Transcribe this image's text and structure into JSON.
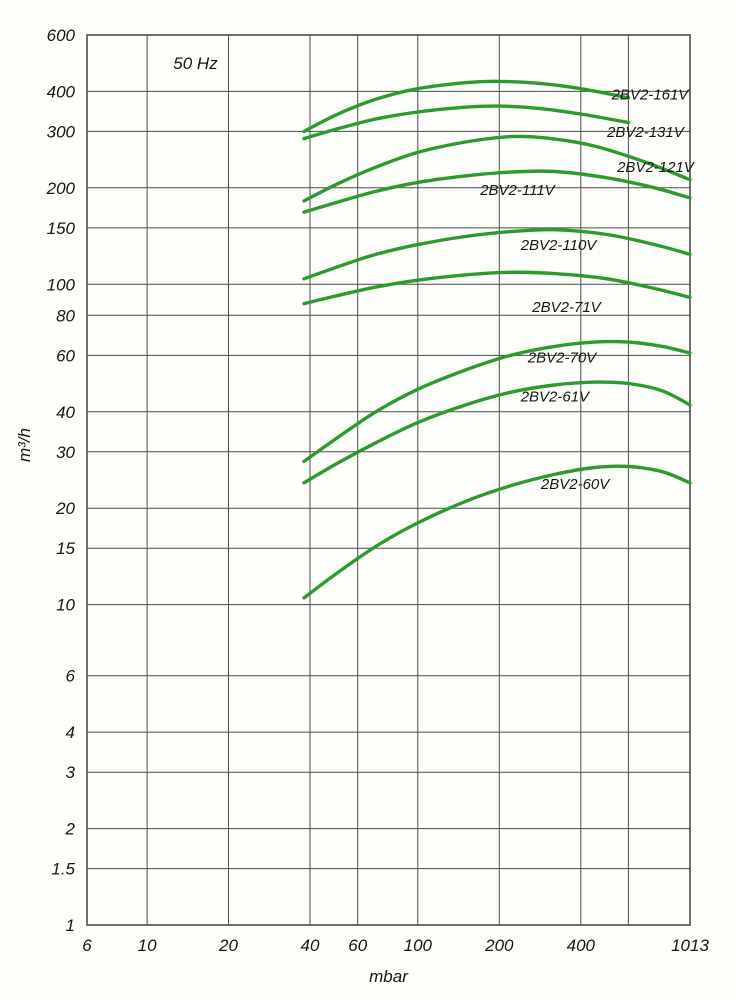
{
  "page": {
    "background": "#fdfdfa"
  },
  "chart_data": {
    "type": "line",
    "title": "50 Hz",
    "title_pos": {
      "x": 12.5,
      "y": 470
    },
    "xlabel": "mbar",
    "ylabel": "m³/h",
    "x_scale": "log",
    "y_scale": "log",
    "xlim": [
      6,
      1013
    ],
    "ylim": [
      1,
      600
    ],
    "grid": true,
    "legend_position": "inline-labels",
    "colors": {
      "curve": "#2c9a2f",
      "grid": "#4c4c4c",
      "text": "#161616"
    },
    "x_ticks": [
      {
        "value": 6,
        "label": "6"
      },
      {
        "value": 10,
        "label": "10"
      },
      {
        "value": 20,
        "label": "20"
      },
      {
        "value": 40,
        "label": "40"
      },
      {
        "value": 60,
        "label": "60"
      },
      {
        "value": 100,
        "label": "100"
      },
      {
        "value": 200,
        "label": "200"
      },
      {
        "value": 400,
        "label": "400"
      },
      {
        "value": 600,
        "label": ""
      },
      {
        "value": 1013,
        "label": "1013"
      }
    ],
    "y_ticks": [
      {
        "value": 600,
        "label": "600"
      },
      {
        "value": 400,
        "label": "400"
      },
      {
        "value": 300,
        "label": "300"
      },
      {
        "value": 200,
        "label": "200"
      },
      {
        "value": 150,
        "label": "150"
      },
      {
        "value": 100,
        "label": "100"
      },
      {
        "value": 80,
        "label": "80"
      },
      {
        "value": 60,
        "label": "60"
      },
      {
        "value": 40,
        "label": "40"
      },
      {
        "value": 30,
        "label": "30"
      },
      {
        "value": 20,
        "label": "20"
      },
      {
        "value": 15,
        "label": "15"
      },
      {
        "value": 10,
        "label": "10"
      },
      {
        "value": 6,
        "label": "6"
      },
      {
        "value": 4,
        "label": "4"
      },
      {
        "value": 3,
        "label": "3"
      },
      {
        "value": 2,
        "label": "2"
      },
      {
        "value": 1.5,
        "label": "1.5"
      },
      {
        "value": 1,
        "label": "1"
      }
    ],
    "series": [
      {
        "name": "2BV2-161V",
        "label": "2BV2-161V",
        "label_x": 520,
        "label_y": 378,
        "points": [
          [
            38,
            300
          ],
          [
            50,
            338
          ],
          [
            70,
            378
          ],
          [
            100,
            408
          ],
          [
            150,
            426
          ],
          [
            200,
            430
          ],
          [
            280,
            424
          ],
          [
            400,
            408
          ],
          [
            600,
            382
          ]
        ]
      },
      {
        "name": "2BV2-131V",
        "label": "2BV2-131V",
        "label_x": 500,
        "label_y": 288,
        "points": [
          [
            38,
            285
          ],
          [
            50,
            305
          ],
          [
            70,
            328
          ],
          [
            100,
            345
          ],
          [
            150,
            357
          ],
          [
            200,
            360
          ],
          [
            280,
            354
          ],
          [
            400,
            340
          ],
          [
            600,
            320
          ]
        ]
      },
      {
        "name": "2BV2-121V",
        "label": "2BV2-121V",
        "label_x": 545,
        "label_y": 224,
        "points": [
          [
            38,
            182
          ],
          [
            50,
            205
          ],
          [
            70,
            232
          ],
          [
            100,
            258
          ],
          [
            150,
            278
          ],
          [
            220,
            289
          ],
          [
            300,
            286
          ],
          [
            450,
            270
          ],
          [
            700,
            240
          ],
          [
            1013,
            212
          ]
        ]
      },
      {
        "name": "2BV2-111V",
        "label": "2BV2-111V",
        "label_x": 170,
        "label_y": 190,
        "points": [
          [
            38,
            168
          ],
          [
            50,
            180
          ],
          [
            70,
            195
          ],
          [
            100,
            208
          ],
          [
            150,
            218
          ],
          [
            220,
            224
          ],
          [
            320,
            225
          ],
          [
            500,
            215
          ],
          [
            750,
            200
          ],
          [
            1013,
            186
          ]
        ]
      },
      {
        "name": "2BV2-110V",
        "label": "2BV2-110V",
        "label_x": 240,
        "label_y": 128,
        "points": [
          [
            38,
            104
          ],
          [
            50,
            113
          ],
          [
            70,
            124
          ],
          [
            100,
            133
          ],
          [
            150,
            141
          ],
          [
            220,
            146
          ],
          [
            320,
            148
          ],
          [
            500,
            143
          ],
          [
            750,
            133
          ],
          [
            1013,
            124
          ]
        ]
      },
      {
        "name": "2BV2-71V",
        "label": "2BV2-71V",
        "label_x": 265,
        "label_y": 82,
        "points": [
          [
            38,
            87
          ],
          [
            50,
            92
          ],
          [
            70,
            98
          ],
          [
            100,
            103
          ],
          [
            150,
            107
          ],
          [
            220,
            109
          ],
          [
            320,
            108
          ],
          [
            500,
            104
          ],
          [
            750,
            97
          ],
          [
            1013,
            91
          ]
        ]
      },
      {
        "name": "2BV2-70V",
        "label": "2BV2-70V",
        "label_x": 255,
        "label_y": 57,
        "points": [
          [
            38,
            28
          ],
          [
            50,
            33
          ],
          [
            70,
            40
          ],
          [
            100,
            47
          ],
          [
            150,
            54
          ],
          [
            220,
            60
          ],
          [
            320,
            64
          ],
          [
            450,
            66
          ],
          [
            600,
            66
          ],
          [
            800,
            64
          ],
          [
            1013,
            61
          ]
        ]
      },
      {
        "name": "2BV2-61V",
        "label": "2BV2-61V",
        "label_x": 240,
        "label_y": 43,
        "points": [
          [
            38,
            24
          ],
          [
            50,
            27.5
          ],
          [
            70,
            32
          ],
          [
            100,
            37
          ],
          [
            150,
            42
          ],
          [
            220,
            46
          ],
          [
            320,
            48.5
          ],
          [
            450,
            49.5
          ],
          [
            600,
            49
          ],
          [
            800,
            46.5
          ],
          [
            1013,
            42
          ]
        ]
      },
      {
        "name": "2BV2-60V",
        "label": "2BV2-60V",
        "label_x": 285,
        "label_y": 23,
        "points": [
          [
            38,
            10.5
          ],
          [
            50,
            12.5
          ],
          [
            70,
            15.2
          ],
          [
            100,
            18
          ],
          [
            150,
            21
          ],
          [
            220,
            23.5
          ],
          [
            320,
            25.5
          ],
          [
            450,
            26.8
          ],
          [
            600,
            27
          ],
          [
            800,
            26
          ],
          [
            1013,
            24
          ]
        ]
      }
    ]
  }
}
